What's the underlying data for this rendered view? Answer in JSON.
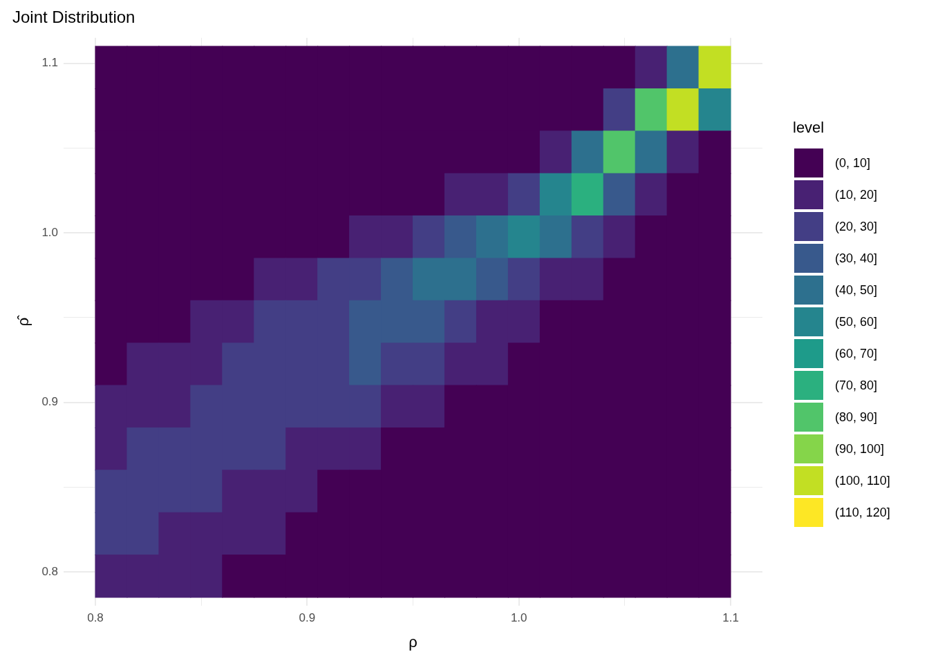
{
  "chart_data": {
    "type": "heatmap",
    "title": "Joint Distribution",
    "xlabel": "ρ",
    "ylabel": "ρ̂",
    "clabel": "level",
    "x": [
      0.8075,
      0.8225,
      0.8375,
      0.8525,
      0.8675,
      0.8825,
      0.8975,
      0.9125,
      0.9275,
      0.9425,
      0.9575,
      0.9725,
      0.9875,
      1.0025,
      1.0175,
      1.0325,
      1.0475,
      1.0625,
      1.0775,
      1.0925
    ],
    "y": [
      1.0975,
      1.0725,
      1.0475,
      1.0225,
      0.9975,
      0.9725,
      0.9475,
      0.9225,
      0.8975,
      0.8725,
      0.8475,
      0.8225,
      0.7975
    ],
    "cells": [
      [
        5,
        5,
        5,
        5,
        5,
        5,
        5,
        5,
        5,
        5,
        5,
        5,
        5,
        5,
        5,
        5,
        5,
        15,
        45,
        105
      ],
      [
        5,
        5,
        5,
        5,
        5,
        5,
        5,
        5,
        5,
        5,
        5,
        5,
        5,
        5,
        5,
        5,
        25,
        85,
        105,
        55
      ],
      [
        5,
        5,
        5,
        5,
        5,
        5,
        5,
        5,
        5,
        5,
        5,
        5,
        5,
        5,
        15,
        45,
        85,
        45,
        15,
        5
      ],
      [
        5,
        5,
        5,
        5,
        5,
        5,
        5,
        5,
        5,
        5,
        5,
        15,
        15,
        25,
        55,
        75,
        35,
        15,
        5,
        5
      ],
      [
        5,
        5,
        5,
        5,
        5,
        5,
        5,
        5,
        15,
        15,
        25,
        35,
        45,
        55,
        45,
        25,
        15,
        5,
        5,
        5
      ],
      [
        5,
        5,
        5,
        5,
        5,
        15,
        15,
        25,
        25,
        35,
        45,
        45,
        35,
        25,
        15,
        15,
        5,
        5,
        5,
        5
      ],
      [
        5,
        5,
        5,
        15,
        15,
        25,
        25,
        25,
        35,
        35,
        35,
        25,
        15,
        15,
        5,
        5,
        5,
        5,
        5,
        5
      ],
      [
        5,
        15,
        15,
        15,
        25,
        25,
        25,
        25,
        35,
        25,
        25,
        15,
        15,
        5,
        5,
        5,
        5,
        5,
        5,
        5
      ],
      [
        15,
        15,
        15,
        25,
        25,
        25,
        25,
        25,
        25,
        15,
        15,
        5,
        5,
        5,
        5,
        5,
        5,
        5,
        5,
        5
      ],
      [
        15,
        25,
        25,
        25,
        25,
        25,
        15,
        15,
        15,
        5,
        5,
        5,
        5,
        5,
        5,
        5,
        5,
        5,
        5,
        5
      ],
      [
        25,
        25,
        25,
        25,
        15,
        15,
        15,
        5,
        5,
        5,
        5,
        5,
        5,
        5,
        5,
        5,
        5,
        5,
        5,
        5
      ],
      [
        25,
        25,
        15,
        15,
        15,
        15,
        5,
        5,
        5,
        5,
        5,
        5,
        5,
        5,
        5,
        5,
        5,
        5,
        5,
        5
      ],
      [
        15,
        15,
        15,
        15,
        5,
        5,
        5,
        5,
        5,
        5,
        5,
        5,
        5,
        5,
        5,
        5,
        5,
        5,
        5,
        5
      ]
    ],
    "clim": [
      0,
      120
    ],
    "cticks": [
      {
        "value": 5,
        "label": "(0, 10]"
      },
      {
        "value": 15,
        "label": "(10, 20]"
      },
      {
        "value": 25,
        "label": "(20, 30]"
      },
      {
        "value": 35,
        "label": "(30, 40]"
      },
      {
        "value": 45,
        "label": "(40, 50]"
      },
      {
        "value": 55,
        "label": "(50, 60]"
      },
      {
        "value": 65,
        "label": "(60, 70]"
      },
      {
        "value": 75,
        "label": "(70, 80]"
      },
      {
        "value": 85,
        "label": "(80, 90]"
      },
      {
        "value": 95,
        "label": "(90, 100]"
      },
      {
        "value": 105,
        "label": "(100, 110]"
      },
      {
        "value": 115,
        "label": "(110, 120]"
      }
    ],
    "colors": [
      "#440154",
      "#482173",
      "#433e85",
      "#38598c",
      "#2d708e",
      "#25858e",
      "#1e9b8a",
      "#2bb07f",
      "#51c56a",
      "#85d54a",
      "#c2df23",
      "#fde725"
    ],
    "xlim": [
      0.785,
      1.115
    ],
    "xticks": [
      0.8,
      {
        "value": 0.85,
        "label": null
      },
      0.9,
      {
        "value": 0.95,
        "label": null
      },
      {
        "value": 1,
        "label": "1.0"
      },
      {
        "value": 1.05,
        "label": null
      },
      1.1
    ],
    "ylim": [
      0.78,
      1.115
    ],
    "yticks": [
      0.8,
      {
        "value": 0.85,
        "label": null
      },
      0.9,
      {
        "value": 0.95,
        "label": null
      },
      {
        "value": 1,
        "label": "1.0"
      },
      {
        "value": 1.05,
        "label": null
      },
      1.1
    ],
    "grid": true
  }
}
